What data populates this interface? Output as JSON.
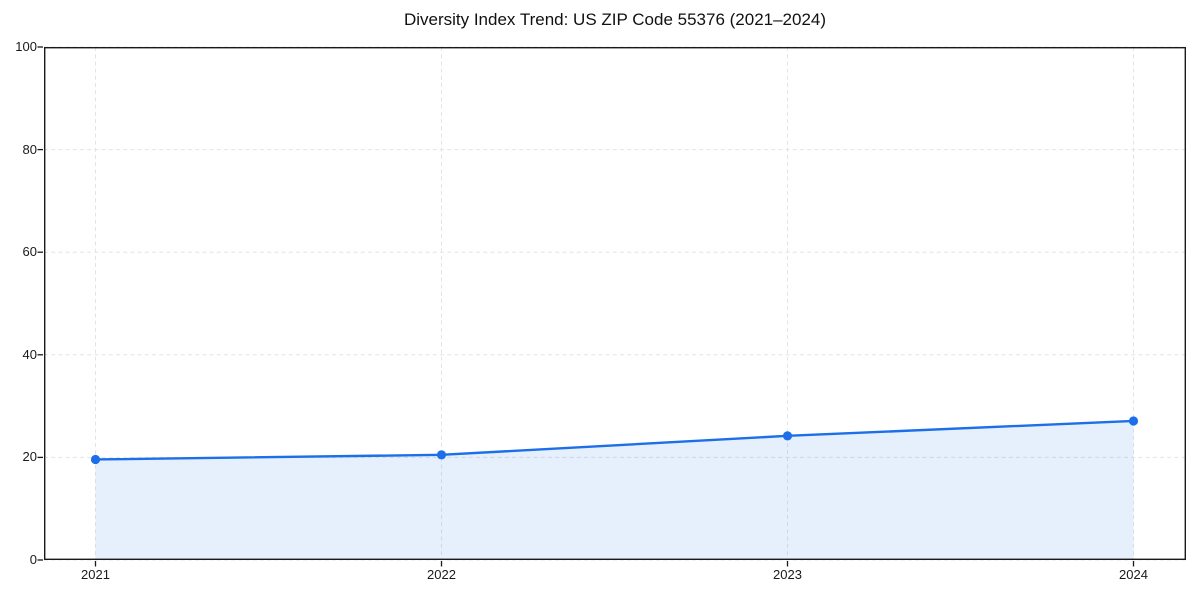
{
  "chart_data": {
    "type": "area",
    "title": "Diversity Index Trend: US ZIP Code 55376 (2021–2024)",
    "categories": [
      "2021",
      "2022",
      "2023",
      "2024"
    ],
    "values": [
      19.6,
      20.5,
      24.2,
      27.1
    ],
    "series_name": "Diversity Index",
    "xlabel": "",
    "ylabel": "",
    "ylim": [
      0,
      100
    ],
    "yticks": [
      0,
      20,
      40,
      60,
      80,
      100
    ],
    "grid": true,
    "grid_style": "dashed",
    "legend_position": "none",
    "line_color": "#1c6fe8",
    "marker": "circle",
    "marker_color": "#1c6fe8",
    "fill_color": "#1c6fe8",
    "fill_opacity": 0.11,
    "grid_color": "#e4e4e4",
    "axis_color": "#1a1a1a",
    "text_color": "#111111",
    "background_color": "#ffffff"
  }
}
